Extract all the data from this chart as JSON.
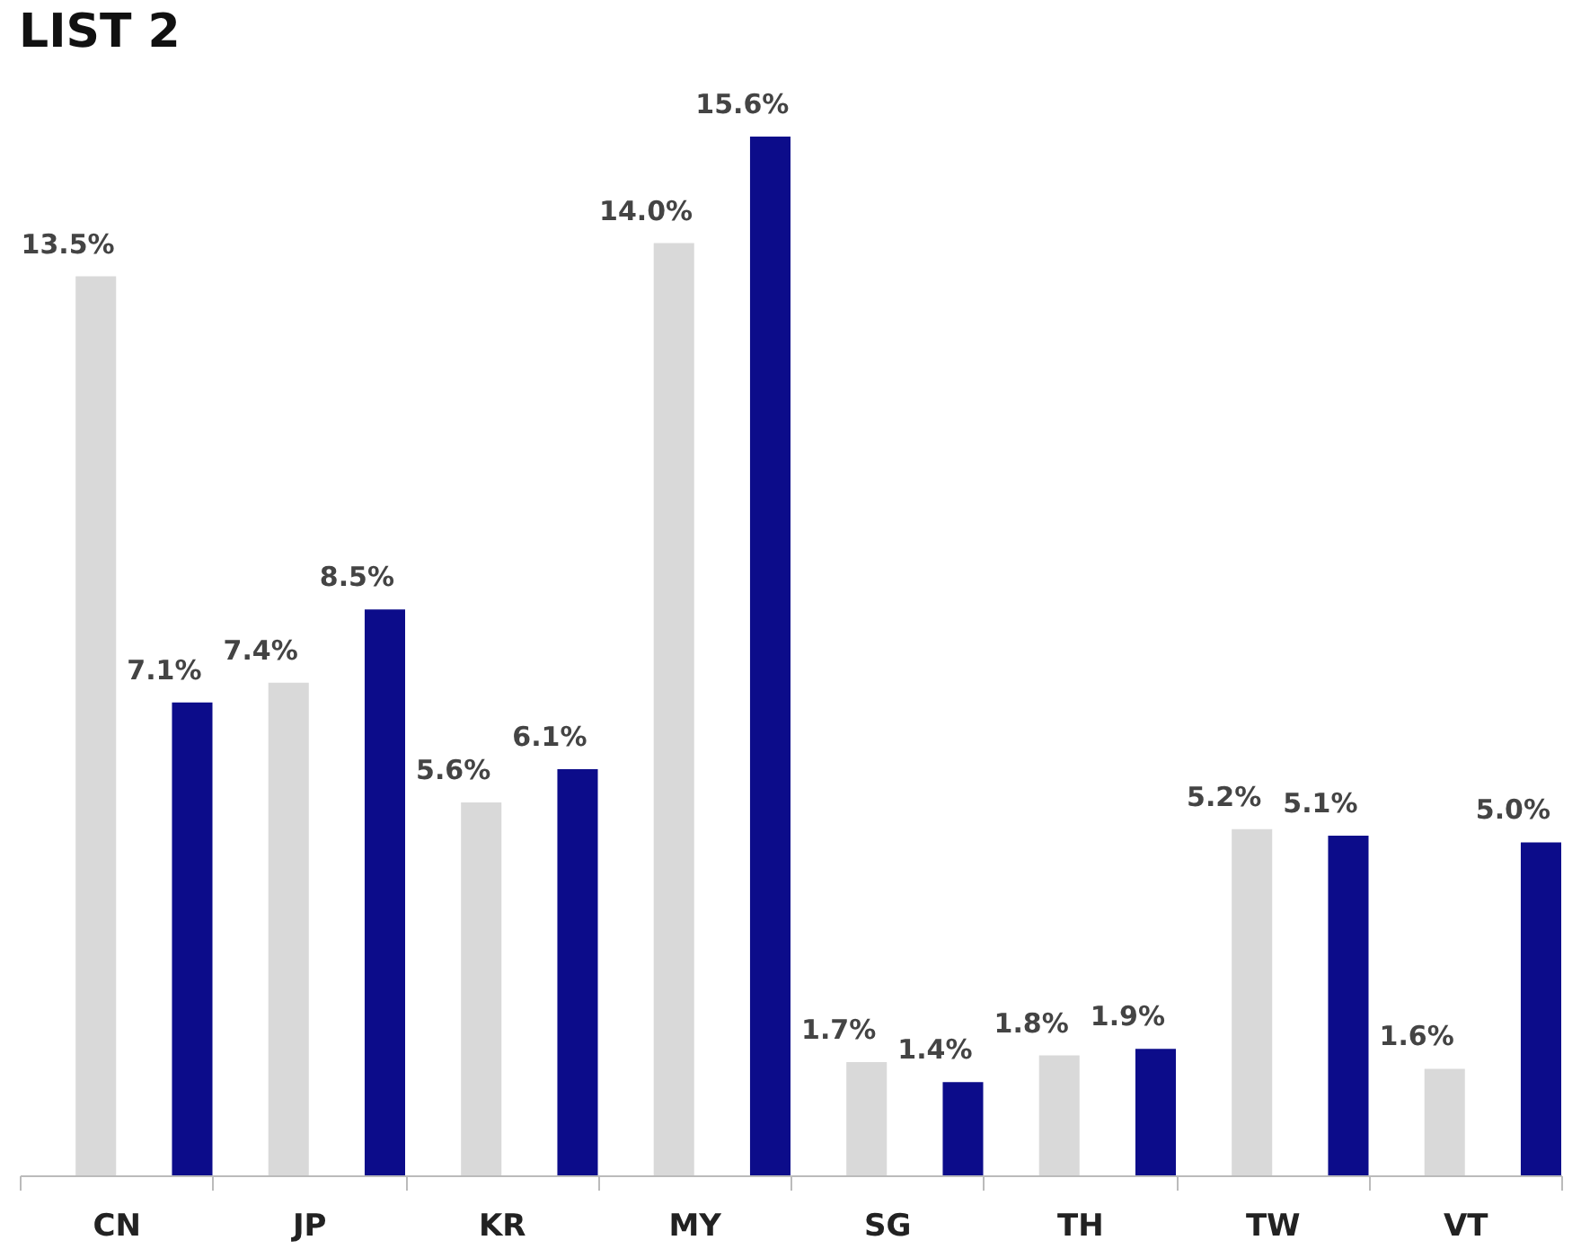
{
  "chart_data": {
    "type": "bar",
    "title": "LIST 2",
    "categories": [
      "CN",
      "JP",
      "KR",
      "MY",
      "SG",
      "TH",
      "TW",
      "VT"
    ],
    "series": [
      {
        "color": "#d9d9d9",
        "values": [
          13.5,
          7.4,
          5.6,
          14.0,
          1.7,
          1.8,
          5.2,
          1.6
        ],
        "value_labels": [
          "13.5%",
          "7.4%",
          "5.6%",
          "14.0%",
          "1.7%",
          "1.8%",
          "5.2%",
          "1.6%"
        ]
      },
      {
        "color": "#0c0c8a",
        "values": [
          7.1,
          8.5,
          6.1,
          15.6,
          1.4,
          1.9,
          5.1,
          5.0
        ],
        "value_labels": [
          "7.1%",
          "8.5%",
          "6.1%",
          "15.6%",
          "1.4%",
          "1.9%",
          "5.1%",
          "5.0%"
        ]
      }
    ]
  }
}
